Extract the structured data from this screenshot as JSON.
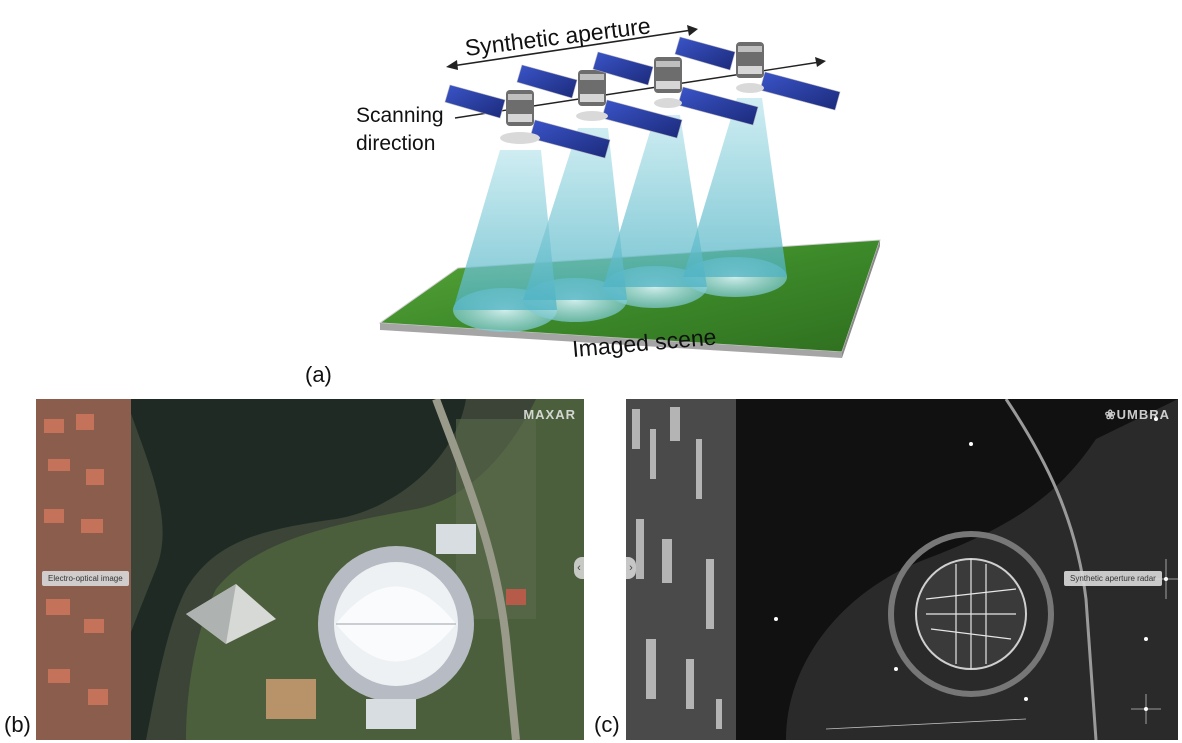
{
  "panel_a": {
    "letter": "(a)",
    "synthetic_aperture_label": "Synthetic aperture",
    "scanning_label_line1": "Scanning",
    "scanning_label_line2": "direction",
    "imaged_scene_label": "Imaged scene"
  },
  "panel_b": {
    "letter": "(b)",
    "tag_text": "Electro-optical image",
    "brand": "MAXAR",
    "nav_arrow_icon": "chevron-left-icon"
  },
  "panel_c": {
    "letter": "(c)",
    "tag_text": "Synthetic aperture radar",
    "brand": "❀UMBRA",
    "nav_arrow_icon": "chevron-right-icon"
  },
  "colors": {
    "beam": "#8fd3dd",
    "grass": "#3f8f2a",
    "solar_panel": "#2a3f9e",
    "sar_background": "#111111"
  }
}
